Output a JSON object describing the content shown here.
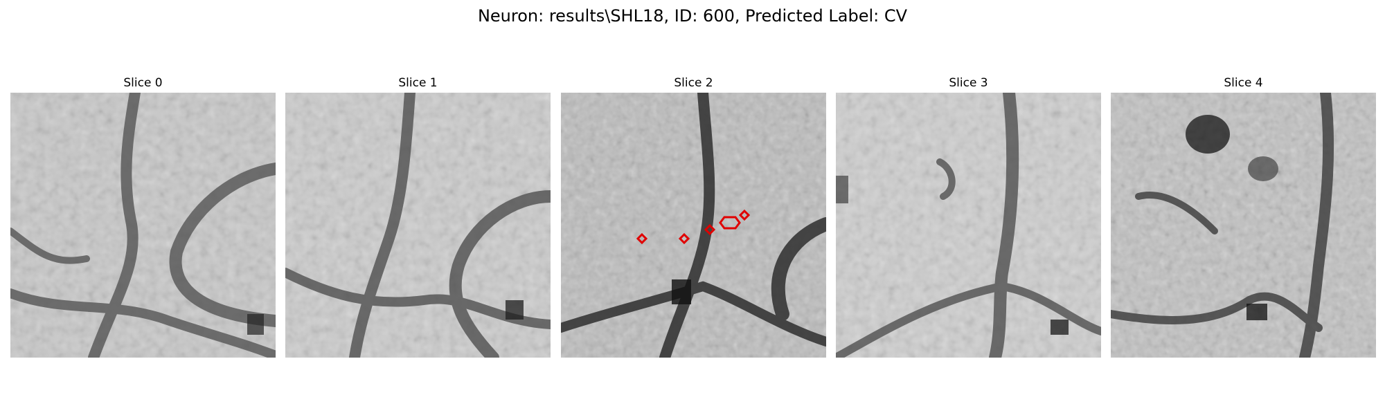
{
  "figure": {
    "title": "Neuron: results\\SHL18, ID: 600, Predicted Label: CV"
  },
  "slices": [
    {
      "title": "Slice 0"
    },
    {
      "title": "Slice 1"
    },
    {
      "title": "Slice 2"
    },
    {
      "title": "Slice 3"
    },
    {
      "title": "Slice 4"
    }
  ],
  "colors": {
    "marker": "#e00000",
    "colormap": "grayscale"
  }
}
